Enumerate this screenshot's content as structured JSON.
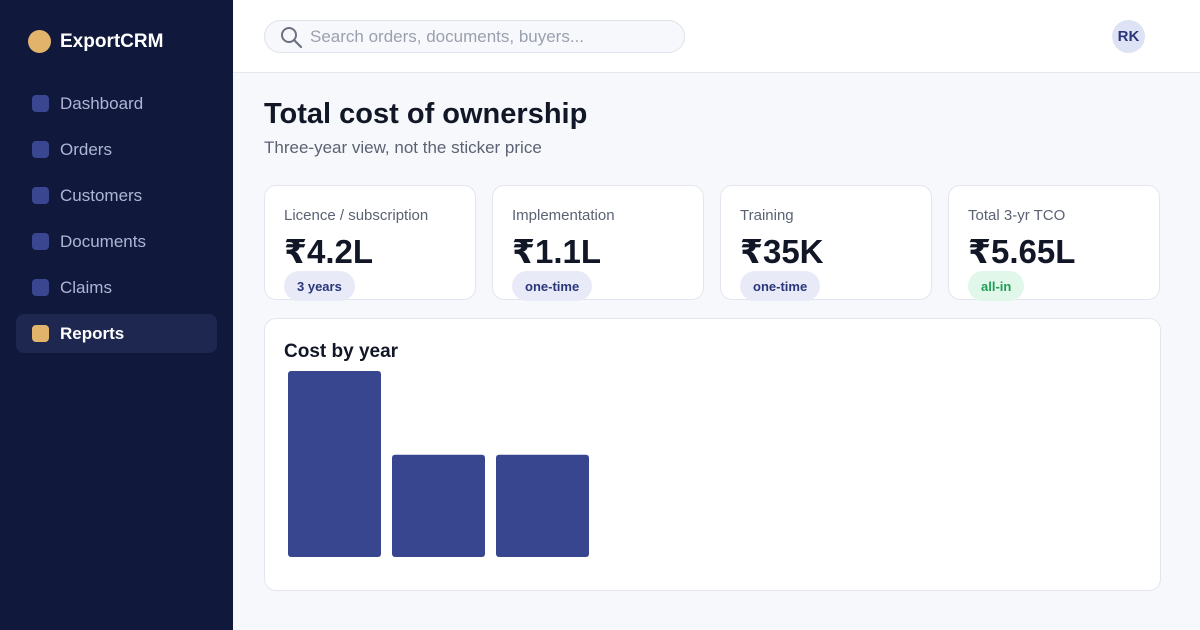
{
  "app": {
    "name": "ExportCRM"
  },
  "sidebar": {
    "items": [
      {
        "label": "Dashboard"
      },
      {
        "label": "Orders"
      },
      {
        "label": "Customers"
      },
      {
        "label": "Documents"
      },
      {
        "label": "Claims"
      },
      {
        "label": "Reports",
        "active": true
      }
    ]
  },
  "search": {
    "placeholder": "Search orders, documents, buyers..."
  },
  "user": {
    "initials": "RK"
  },
  "page": {
    "title": "Total cost of ownership",
    "subtitle": "Three-year view, not the sticker price"
  },
  "kpis": [
    {
      "label": "Licence / subscription",
      "value": "₹4.2L",
      "badge": "3 years"
    },
    {
      "label": "Implementation",
      "value": "₹1.1L",
      "badge": "one-time"
    },
    {
      "label": "Training",
      "value": "₹35K",
      "badge": "one-time"
    },
    {
      "label": "Total 3-yr TCO",
      "value": "₹5.65L",
      "badge": "all-in"
    }
  ],
  "colors": {
    "sidebar_bg": "#10183b",
    "accent": "#e2b46b",
    "bar": "#38458f",
    "positive": "#1e9e57"
  },
  "chart_data": {
    "type": "bar",
    "title": "Cost by year",
    "categories": [
      "",
      "",
      ""
    ],
    "values": [
      100,
      55,
      55
    ],
    "ylim": [
      0,
      100
    ],
    "grid": false,
    "legend": "none"
  }
}
